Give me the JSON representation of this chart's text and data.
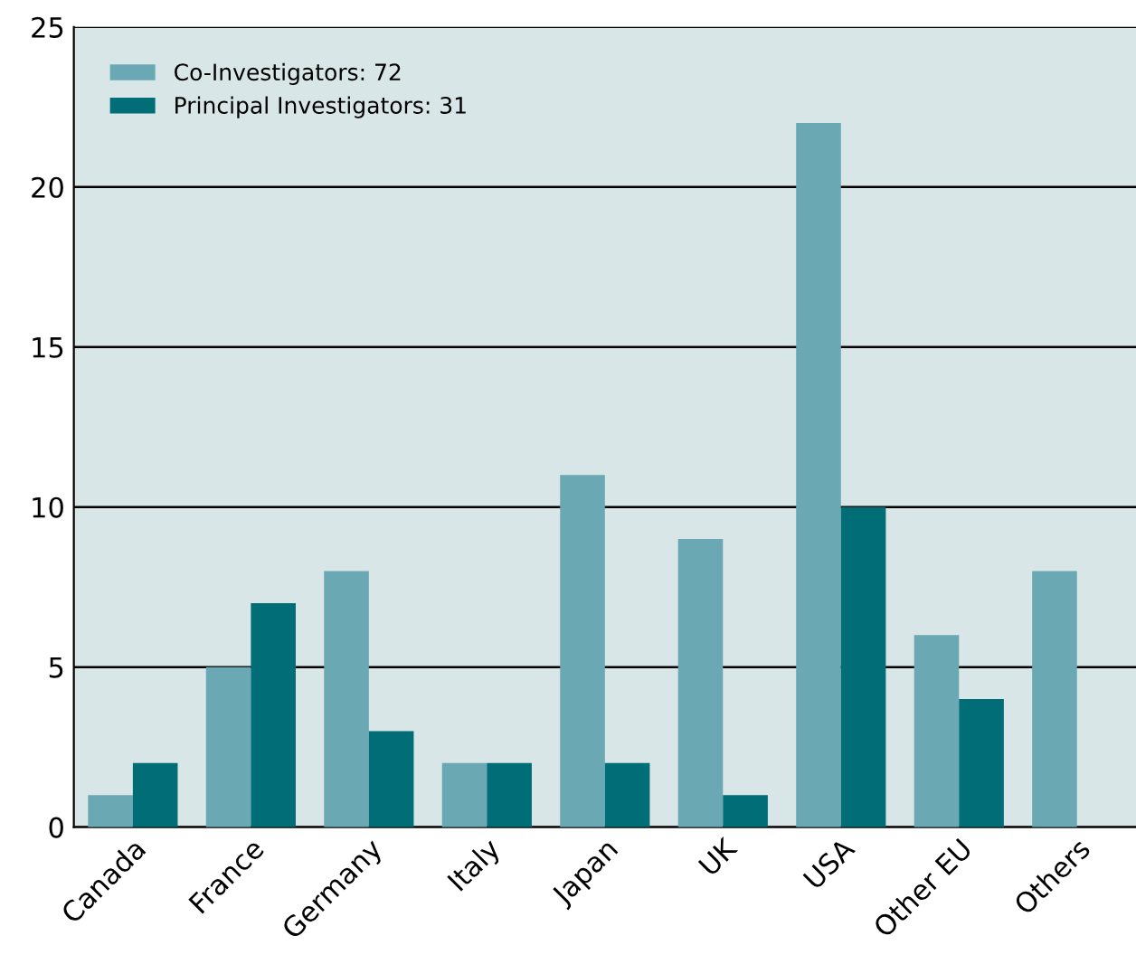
{
  "chart_data": {
    "type": "bar",
    "categories": [
      "Canada",
      "France",
      "Germany",
      "Italy",
      "Japan",
      "UK",
      "USA",
      "Other EU",
      "Others"
    ],
    "series": [
      {
        "name": "Co-Investigators: 72",
        "color": "#6aa8b4",
        "values": [
          1,
          5,
          8,
          2,
          11,
          9,
          22,
          6,
          8
        ]
      },
      {
        "name": "Principal Investigators: 31",
        "color": "#006d77",
        "values": [
          2,
          7,
          3,
          2,
          2,
          1,
          10,
          4,
          0
        ]
      }
    ],
    "ylim": [
      0,
      25
    ],
    "yticks": [
      0,
      5,
      10,
      15,
      20,
      25
    ],
    "grid": "y",
    "legend": "top left"
  }
}
